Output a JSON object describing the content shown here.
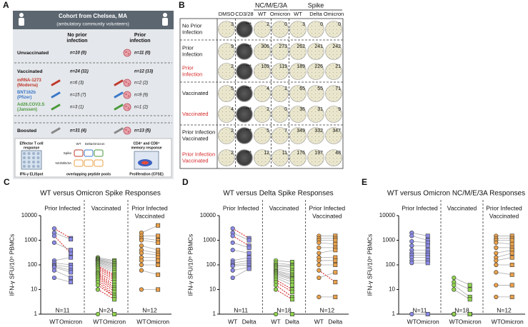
{
  "panel_a": {
    "label": "A",
    "title": "Cohort from Chelsea, MA",
    "subtitle": "(ambulatory community volunteers)",
    "column_headers": [
      [
        "No prior",
        "infection"
      ],
      [
        "Prior",
        "infection"
      ]
    ],
    "rows": [
      {
        "name": [
          "Unvaccinated"
        ],
        "color": "#111111",
        "n": [
          "n=10 (0)",
          "n=11 (0)"
        ]
      },
      {
        "name": [
          "Vaccinated"
        ],
        "color": "#111111",
        "n": [
          "n=24 (11)",
          "n=12 (13)"
        ]
      },
      {
        "name": [
          "mRNA-1273",
          "(Moderna)"
        ],
        "color": "#c0392b",
        "n": [
          "n=6 (3)",
          "n=2 (2)"
        ]
      },
      {
        "name": [
          "BNT162b",
          "(Pfizer)"
        ],
        "color": "#3a78c9",
        "n": [
          "n=15 (7)",
          "n=9 (9)"
        ]
      },
      {
        "name": [
          "Ad26.COV2.S",
          "(Janssen)"
        ],
        "color": "#4a9a3c",
        "n": [
          "n=3 (1)",
          "n=1 (2)"
        ]
      },
      {
        "name": [
          "Boosted"
        ],
        "color": "#111111",
        "n": [
          "n=31 (4)",
          "n=13 (5)"
        ]
      }
    ],
    "assay_left": [
      "Effector T cell",
      "response"
    ],
    "assay_left_method": "IFN-γ ELISpot",
    "pools": [
      "WT",
      "Delta",
      "Omicron"
    ],
    "pool_rows": [
      "Spike",
      "NC/M/E/3A"
    ],
    "pools_caption": "overlapping peptide pools",
    "assay_right": [
      "CD4⁺ and CD8⁺",
      "memory response"
    ],
    "assay_right_method": "Proliferation (CFSE)"
  },
  "panel_b": {
    "label": "B",
    "columns": [
      "DMSO",
      "CD3/28",
      "WT",
      "Omicron",
      "WT",
      "Delta",
      "Omicron"
    ],
    "column_groups": [
      "NC/M/E/3A",
      "Spike"
    ],
    "rows": [
      {
        "label": [
          "No Prior",
          "Infection"
        ],
        "color": "#111111",
        "counts": [
          3,
          "***",
          2,
          0,
          3,
          0,
          0
        ]
      },
      {
        "label": [
          "Prior",
          "Infection"
        ],
        "color": "#111111",
        "counts": [
          9,
          "***",
          306,
          273,
          262,
          241,
          242
        ]
      },
      {
        "label": [
          "Prior",
          "Infection"
        ],
        "color": "#d62728",
        "counts": [
          2,
          "***",
          109,
          119,
          189,
          226,
          21
        ]
      },
      {
        "label": [
          "Vaccinated"
        ],
        "color": "#111111",
        "counts": [
          5,
          "***",
          4,
          2,
          65,
          55,
          71
        ]
      },
      {
        "label": [
          "Vaccinated"
        ],
        "color": "#d62728",
        "counts": [
          4,
          "***",
          2,
          0,
          36,
          31,
          9
        ]
      },
      {
        "label": [
          "Prior Infection",
          "Vaccinated"
        ],
        "color": "#111111",
        "counts": [
          2,
          "***",
          5,
          7,
          349,
          332,
          347
        ]
      },
      {
        "label": [
          "Prior Infection",
          "Vaccinated"
        ],
        "color": "#d62728",
        "counts": [
          2,
          "***",
          12,
          11,
          176,
          197,
          48
        ]
      }
    ]
  },
  "chart_data": [
    {
      "type": "paired_dot",
      "label": "C",
      "title": "WT versus Omicron Spike Responses",
      "ylabel": "IFN-γ SFU/10⁶ PBMCs",
      "log": true,
      "ylim": [
        1,
        10000
      ],
      "yticks": [
        1,
        10,
        100,
        1000,
        10000
      ],
      "line_color": "#aaaaaa",
      "decrease_color": "#d62728",
      "groups": [
        {
          "name": [
            "Prior Infected"
          ],
          "n_label": "N=11",
          "color": "#8a8ae6",
          "series": [
            {
              "name": "WT",
              "values": [
                3000,
                2000,
                1500,
                800,
                150,
                120,
                100,
                90,
                80,
                60,
                30
              ]
            },
            {
              "name": "Omicron",
              "values": [
                1200,
                1100,
                300,
                400,
                200,
                100,
                80,
                60,
                50,
                30,
                20
              ]
            }
          ]
        },
        {
          "name": [
            "Vaccinated"
          ],
          "n_label": "N=24",
          "color": "#8fd14f",
          "series": [
            {
              "name": "WT",
              "values": [
                200,
                180,
                170,
                160,
                150,
                140,
                130,
                120,
                110,
                100,
                90,
                80,
                70,
                60,
                50,
                45,
                40,
                35,
                30,
                25,
                20,
                15,
                10,
                1
              ]
            },
            {
              "name": "Omicron",
              "values": [
                150,
                140,
                120,
                110,
                100,
                90,
                80,
                70,
                60,
                50,
                40,
                35,
                30,
                25,
                20,
                15,
                12,
                10,
                8,
                6,
                5,
                5,
                4,
                1
              ]
            }
          ]
        },
        {
          "name": [
            "Prior Infected",
            "Vaccinated"
          ],
          "n_label": "N=12",
          "color": "#e8a04a",
          "series": [
            {
              "name": "WT",
              "values": [
                2000,
                1500,
                1200,
                1000,
                600,
                400,
                300,
                200,
                150,
                100,
                10,
                60
              ]
            },
            {
              "name": "Omicron",
              "values": [
                4000,
                1500,
                1000,
                800,
                400,
                300,
                250,
                200,
                150,
                100,
                10,
                40
              ]
            }
          ]
        }
      ]
    },
    {
      "type": "paired_dot",
      "label": "D",
      "title": "WT versus Delta Spike Responses",
      "ylabel": "IFN-γ SFU/10⁶ PBMCs",
      "log": true,
      "ylim": [
        1,
        10000
      ],
      "yticks": [
        1,
        10,
        100,
        1000,
        10000
      ],
      "line_color": "#aaaaaa",
      "decrease_color": "#d62728",
      "groups": [
        {
          "name": [
            "Prior Infected"
          ],
          "n_label": "N=11",
          "color": "#8a8ae6",
          "series": [
            {
              "name": "WT",
              "values": [
                3000,
                2000,
                1500,
                800,
                400,
                150,
                120,
                100,
                90,
                60,
                30
              ]
            },
            {
              "name": "Delta",
              "values": [
                1200,
                1000,
                600,
                500,
                300,
                200,
                150,
                120,
                100,
                80,
                70
              ]
            }
          ]
        },
        {
          "name": [
            "Vaccinated"
          ],
          "n_label": "N=18",
          "color": "#8fd14f",
          "series": [
            {
              "name": "WT",
              "values": [
                150,
                120,
                100,
                90,
                80,
                70,
                60,
                55,
                50,
                45,
                40,
                35,
                30,
                25,
                20,
                15,
                10,
                1
              ]
            },
            {
              "name": "Delta",
              "values": [
                130,
                100,
                90,
                80,
                60,
                50,
                40,
                35,
                30,
                28,
                25,
                20,
                15,
                10,
                8,
                5,
                4,
                1
              ]
            }
          ]
        },
        {
          "name": [
            "Prior Infected",
            "Vaccinated"
          ],
          "n_label": "N=12",
          "color": "#e8a04a",
          "series": [
            {
              "name": "WT",
              "values": [
                1500,
                1200,
                1000,
                800,
                500,
                300,
                200,
                150,
                100,
                30,
                5,
                60
              ]
            },
            {
              "name": "Delta",
              "values": [
                1500,
                1200,
                1000,
                700,
                500,
                400,
                200,
                150,
                100,
                50,
                5,
                20
              ]
            }
          ]
        }
      ]
    },
    {
      "type": "paired_dot",
      "label": "E",
      "title": "WT versus Omicron NC/M/E/3A Responses",
      "ylabel": "IFN-γ SFU/10⁶ PBMCs",
      "log": true,
      "ylim": [
        1,
        10000
      ],
      "yticks": [
        1,
        10,
        100,
        1000,
        10000
      ],
      "line_color": "#aaaaaa",
      "decrease_color": null,
      "groups": [
        {
          "name": [
            "Prior Infected"
          ],
          "n_label": "N=11",
          "color": "#8a8ae6",
          "series": [
            {
              "name": "WT",
              "values": [
                2000,
                1500,
                900,
                600,
                400,
                300,
                250,
                200,
                150,
                120,
                1
              ]
            },
            {
              "name": "Omicron",
              "values": [
                1500,
                1000,
                800,
                600,
                400,
                300,
                250,
                200,
                150,
                120,
                1
              ]
            }
          ]
        },
        {
          "name": [
            "Vaccinated"
          ],
          "n_label": "N=18",
          "color": "#8fd14f",
          "series": [
            {
              "name": "WT",
              "values": [
                30,
                20,
                15,
                10,
                1,
                1,
                1,
                1,
                1,
                1,
                1,
                1,
                1,
                1,
                1,
                1,
                1,
                1
              ]
            },
            {
              "name": "Omicron",
              "values": [
                15,
                10,
                5,
                4,
                1,
                1,
                1,
                1,
                1,
                1,
                1,
                1,
                1,
                1,
                1,
                1,
                1,
                1
              ]
            }
          ]
        },
        {
          "name": [
            "Prior Infected",
            "Vaccinated"
          ],
          "n_label": "N=12",
          "color": "#e8a04a",
          "series": [
            {
              "name": "WT",
              "values": [
                1500,
                1200,
                1000,
                800,
                500,
                300,
                200,
                150,
                100,
                50,
                15,
                5
              ]
            },
            {
              "name": "Omicron",
              "values": [
                1500,
                1200,
                1000,
                700,
                500,
                400,
                300,
                200,
                100,
                40,
                15,
                5
              ]
            }
          ]
        }
      ]
    }
  ]
}
